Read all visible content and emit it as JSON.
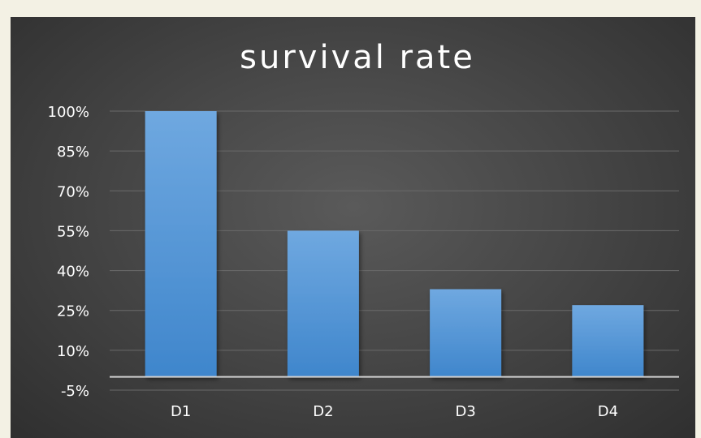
{
  "chart_data": {
    "type": "bar",
    "title": "survival rate",
    "xlabel": "",
    "ylabel": "",
    "categories": [
      "D1",
      "D2",
      "D3",
      "D4"
    ],
    "values": [
      100,
      55,
      33,
      27
    ],
    "value_format": "percent",
    "ylim": [
      -5,
      100
    ],
    "yticks": [
      100,
      85,
      70,
      55,
      40,
      25,
      10,
      -5
    ],
    "ytick_labels": [
      "100%",
      "85%",
      "70%",
      "55%",
      "40%",
      "25%",
      "10%",
      "-5%"
    ],
    "grid": true,
    "legend": "none",
    "colors": {
      "bar_top": "#6fa8e0",
      "bar_bottom": "#3f86cc",
      "background": "#474747",
      "page": "#f3f1e4"
    }
  }
}
